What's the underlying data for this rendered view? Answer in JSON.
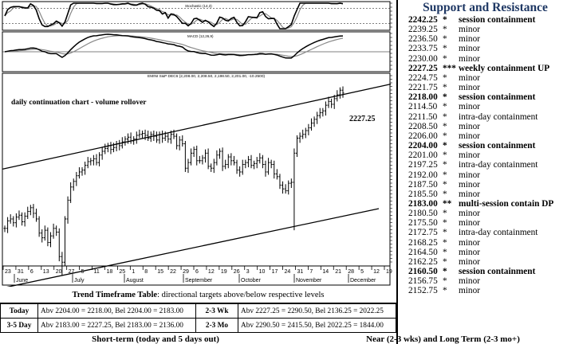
{
  "support_resistance": {
    "title": "Support and Resistance",
    "levels": [
      {
        "price": "2242.25",
        "stars": "*",
        "note": "session containment",
        "bold": true
      },
      {
        "price": "2239.25",
        "stars": "*",
        "note": "minor",
        "bold": false
      },
      {
        "price": "2236.50",
        "stars": "*",
        "note": "minor",
        "bold": false
      },
      {
        "price": "2233.75",
        "stars": "*",
        "note": "minor",
        "bold": false
      },
      {
        "price": "2230.00",
        "stars": "*",
        "note": "minor",
        "bold": false
      },
      {
        "price": "2227.25",
        "stars": "***",
        "note": "weekly containment UP",
        "bold": true
      },
      {
        "price": "2224.75",
        "stars": "*",
        "note": "minor",
        "bold": false
      },
      {
        "price": "2221.75",
        "stars": "*",
        "note": "minor",
        "bold": false
      },
      {
        "price": "2218.00",
        "stars": "*",
        "note": "session containment",
        "bold": true
      },
      {
        "price": "2114.50",
        "stars": "*",
        "note": "minor",
        "bold": false
      },
      {
        "price": "2211.50",
        "stars": "*",
        "note": "intra-day containment",
        "bold": false
      },
      {
        "price": "2208.50",
        "stars": "*",
        "note": "minor",
        "bold": false
      },
      {
        "price": "2206.00",
        "stars": "*",
        "note": "minor",
        "bold": false
      },
      {
        "price": "2204.00",
        "stars": "*",
        "note": "session containment",
        "bold": true
      },
      {
        "price": "2201.00",
        "stars": "*",
        "note": "minor",
        "bold": false
      },
      {
        "price": "2197.25",
        "stars": "*",
        "note": "intra-day containment",
        "bold": false
      },
      {
        "price": "2192.00",
        "stars": "*",
        "note": "minor",
        "bold": false
      },
      {
        "price": "2187.50",
        "stars": "*",
        "note": "minor",
        "bold": false
      },
      {
        "price": "2185.50",
        "stars": "*",
        "note": "minor",
        "bold": false
      },
      {
        "price": "2183.00",
        "stars": "**",
        "note": "multi-session contain DP",
        "bold": true
      },
      {
        "price": "2180.50",
        "stars": "*",
        "note": "minor",
        "bold": false
      },
      {
        "price": "2175.50",
        "stars": "*",
        "note": "minor",
        "bold": false
      },
      {
        "price": "2172.75",
        "stars": "*",
        "note": "intra-day containment",
        "bold": false
      },
      {
        "price": "2168.25",
        "stars": "*",
        "note": "minor",
        "bold": false
      },
      {
        "price": "2164.50",
        "stars": "*",
        "note": "minor",
        "bold": false
      },
      {
        "price": "2162.25",
        "stars": "*",
        "note": "minor",
        "bold": false
      },
      {
        "price": "2160.50",
        "stars": "*",
        "note": "session containment",
        "bold": true
      },
      {
        "price": "2156.75",
        "stars": "*",
        "note": "minor",
        "bold": false
      },
      {
        "price": "2152.75",
        "stars": "*",
        "note": "minor",
        "bold": false
      }
    ]
  },
  "chart_data": {
    "type": "ohlc",
    "title": "EMINI S&P DEC6 (2,208.00, 2,208.50, 2,198.50, 2,201.00, -10.2500)",
    "annotation": "daily continuation chart - volume rollover",
    "last_label": "2227.25",
    "indicator1_label": "Stochastic (14,3)",
    "indicator2_label": "MACD (12,26,9)",
    "ylim": [
      2040,
      2245
    ],
    "months": [
      "June",
      "July",
      "August",
      "September",
      "October",
      "November",
      "December"
    ],
    "x_tick_labels": [
      "23",
      "31",
      "6",
      "13",
      "20",
      "27",
      "5",
      "11",
      "18",
      "25",
      "1",
      "8",
      "15",
      "22",
      "29",
      "6",
      "12",
      "19",
      "26",
      "3",
      "10",
      "17",
      "24",
      "31",
      "7",
      "14",
      "21",
      "28",
      "5",
      "12",
      "19"
    ],
    "closes": [
      2080,
      2088,
      2090,
      2086,
      2092,
      2094,
      2087,
      2093,
      2098,
      2102,
      2096,
      2090,
      2075,
      2070,
      2078,
      2065,
      2072,
      2080,
      2076,
      2050,
      2044,
      2090,
      2110,
      2124,
      2130,
      2136,
      2140,
      2142,
      2147,
      2151,
      2152,
      2154,
      2150,
      2158,
      2162,
      2165,
      2168,
      2164,
      2166,
      2170,
      2168,
      2172,
      2175,
      2177,
      2173,
      2175,
      2179,
      2180,
      2181,
      2179,
      2176,
      2180,
      2178,
      2174,
      2180,
      2176,
      2178,
      2175,
      2180,
      2178,
      2168,
      2174,
      2170,
      2144,
      2150,
      2160,
      2164,
      2152,
      2152,
      2155,
      2160,
      2146,
      2144,
      2150,
      2158,
      2162,
      2146,
      2148,
      2156,
      2152,
      2150,
      2142,
      2140,
      2148,
      2150,
      2153,
      2147,
      2149,
      2152,
      2155,
      2148,
      2140,
      2150,
      2148,
      2138,
      2135,
      2126,
      2122,
      2120,
      2128,
      2129,
      2160,
      2176,
      2178,
      2180,
      2184,
      2187,
      2192,
      2196,
      2200,
      2203,
      2205,
      2211,
      2215,
      2212,
      2218,
      2222,
      2227,
      2224
    ],
    "support_line": {
      "start": 2016.5,
      "end": 2101
    },
    "resistance_line": {
      "start": 2143,
      "end": 2233.5
    },
    "legend": "none",
    "grid": false
  },
  "trend_table": {
    "title_bold": "Trend Timeframe Table",
    "title_rest": ": directional targets above/below respective levels",
    "rows": [
      {
        "label": "Today",
        "target": "Abv 2204.00 = 2218.00, Bel 2204.00 = 2183.00",
        "period": "2-3 Wk",
        "target2": "Abv 2227.25 = 2290.50, Bel 2136.25 = 2022.25"
      },
      {
        "label": "3-5 Day",
        "target": "Abv 2183.00 = 2227.25, Bel 2183.00 = 2136.00",
        "period": "2-3 Mo",
        "target2": "Abv 2290.50 = 2415.50, Bel 2022.25 = 1844.00"
      }
    ]
  },
  "footer": {
    "short_term": "Short-term (today and 5 days out)",
    "near_long": "Near (2-3 wks) and Long Term (2-3 mo+)"
  }
}
